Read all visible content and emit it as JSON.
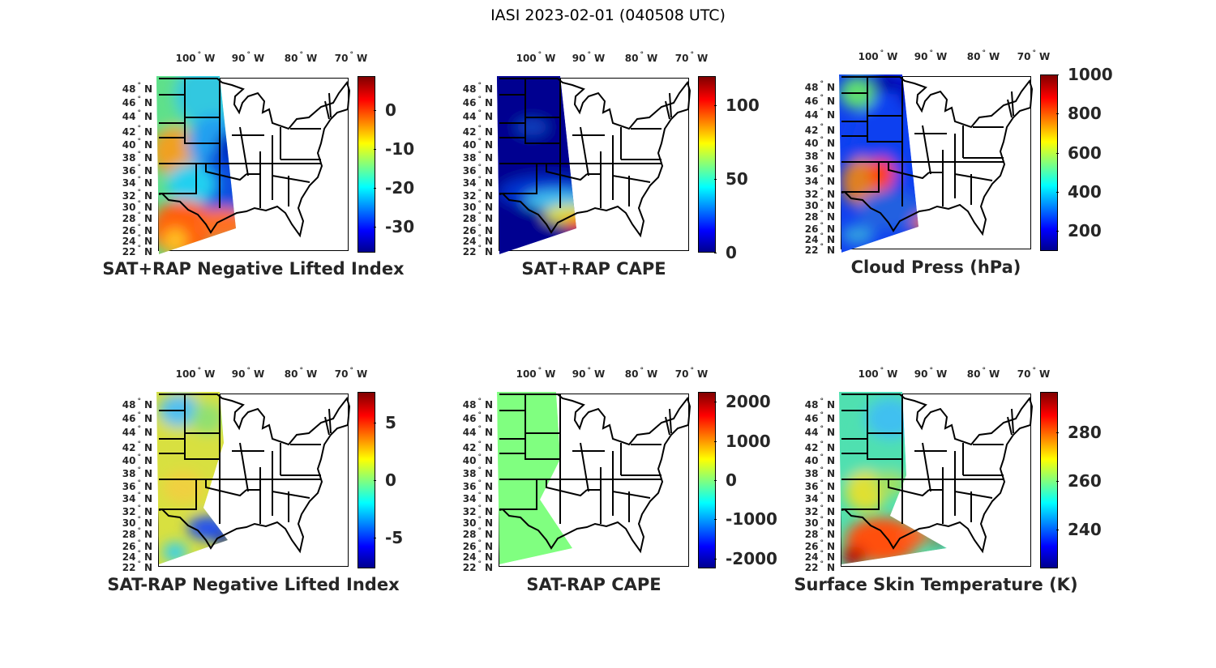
{
  "suptitle": "IASI 2023-02-01 (040508 UTC)",
  "lon_labels": [
    "100",
    "90",
    "80",
    "70"
  ],
  "lon_suffix": "W",
  "lat_labels": [
    "48",
    "46",
    "44",
    "42",
    "40",
    "38",
    "36",
    "34",
    "32",
    "30",
    "28",
    "26",
    "24",
    "22"
  ],
  "lat_suffix": "N",
  "degree": "°",
  "panels": [
    {
      "title": "SAT+RAP Negative Lifted Index",
      "range": [
        -36.7,
        8.7
      ],
      "ticks": [
        "0",
        "-10",
        "-20",
        "-30"
      ],
      "tick_values": [
        0,
        -10,
        -20,
        -30
      ]
    },
    {
      "title": "SAT+RAP CAPE",
      "range": [
        0,
        120
      ],
      "ticks": [
        "100",
        "50",
        "0"
      ],
      "tick_values": [
        100,
        50,
        0
      ]
    },
    {
      "title": "Cloud Press (hPa)",
      "range": [
        97,
        1000
      ],
      "ticks": [
        "1000",
        "800",
        "600",
        "400",
        "200"
      ],
      "tick_values": [
        1000,
        800,
        600,
        400,
        200
      ]
    },
    {
      "title": "SAT-RAP Negative Lifted Index",
      "range": [
        -7.7,
        7.7
      ],
      "ticks": [
        "5",
        "0",
        "-5"
      ],
      "tick_values": [
        5,
        0,
        -5
      ]
    },
    {
      "title": "SAT-RAP CAPE",
      "range": [
        -2250,
        2250
      ],
      "ticks": [
        "2000",
        "1000",
        "0",
        "-1000",
        "-2000"
      ],
      "tick_values": [
        2000,
        1000,
        0,
        -1000,
        -2000
      ]
    },
    {
      "title": "Surface Skin Temperature (K)",
      "range": [
        224,
        296.5
      ],
      "ticks": [
        "280",
        "260",
        "240"
      ],
      "tick_values": [
        280,
        260,
        240
      ]
    }
  ],
  "colormap": [
    "#00008f",
    "#0000ff",
    "#00ffff",
    "#ffff00",
    "#ff0000",
    "#800000"
  ]
}
